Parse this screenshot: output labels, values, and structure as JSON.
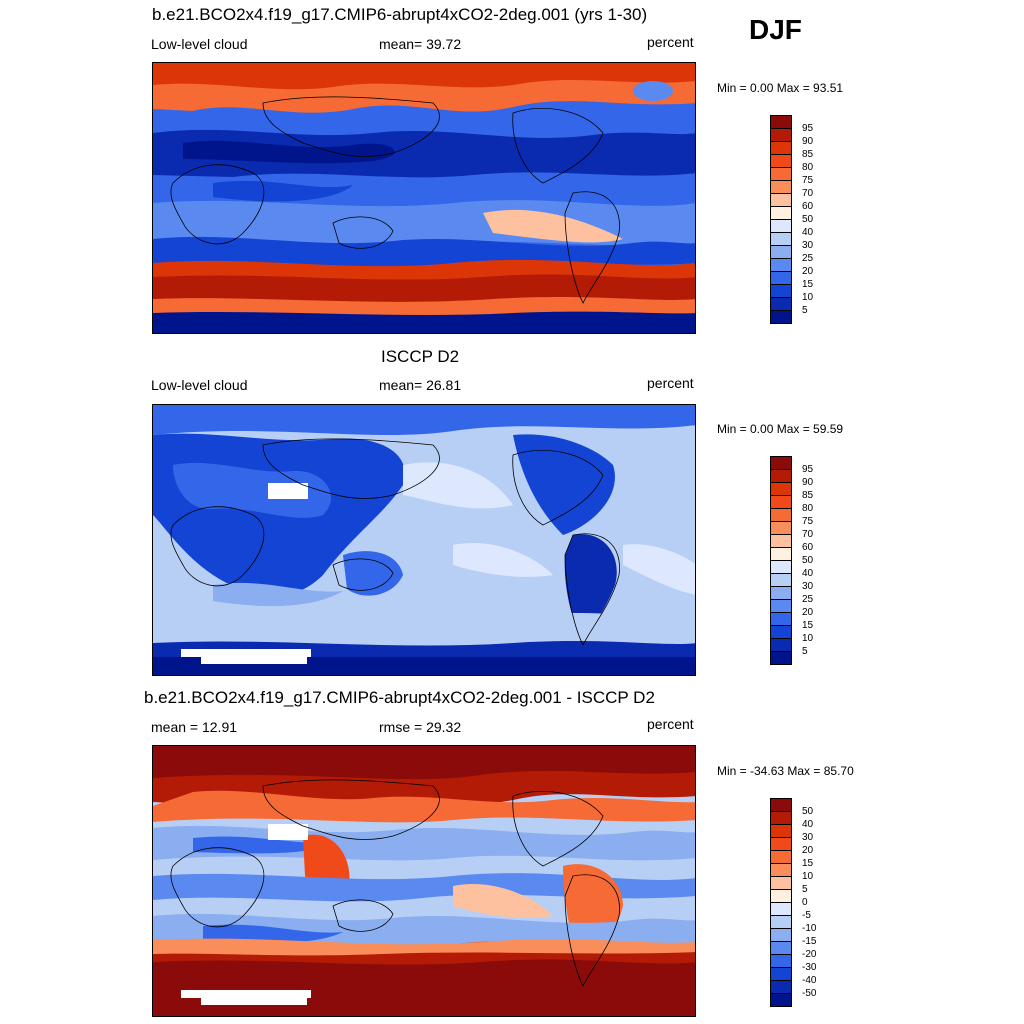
{
  "season": "DJF",
  "panels": [
    {
      "title": "b.e21.BCO2x4.f19_g17.CMIP6-abrupt4xCO2-2deg.001 (yrs 1-30)",
      "left_label": "Low-level cloud",
      "center_label": "mean=  39.72",
      "right_label": "percent",
      "minmax": "Min =   0.00 Max =  93.51"
    },
    {
      "title": "ISCCP D2",
      "left_label": "Low-level cloud",
      "center_label": "mean=  26.81",
      "right_label": "percent",
      "minmax": "Min =   0.00 Max =  59.59"
    },
    {
      "title": "b.e21.BCO2x4.f19_g17.CMIP6-abrupt4xCO2-2deg.001 - ISCCP D2",
      "left_label": "mean =  12.91",
      "center_label": "rmse =  29.32",
      "right_label": "percent",
      "minmax": "Min = -34.63 Max =  85.70"
    }
  ],
  "colorbars": {
    "field": {
      "labels": [
        "95",
        "90",
        "85",
        "80",
        "75",
        "70",
        "60",
        "50",
        "40",
        "30",
        "25",
        "20",
        "15",
        "10",
        "5"
      ],
      "colors": [
        "#8b0a0a",
        "#b31b06",
        "#dc3508",
        "#f04a1a",
        "#f56a35",
        "#fa8e5a",
        "#fdc1a0",
        "#fff0e0",
        "#dde8ff",
        "#b8cff5",
        "#8aaef0",
        "#5a8af0",
        "#3366e8",
        "#1444d4",
        "#0a2ab0",
        "#00148c"
      ]
    },
    "diff": {
      "labels": [
        "50",
        "40",
        "30",
        "20",
        "15",
        "10",
        "5",
        "0",
        "-5",
        "-10",
        "-15",
        "-20",
        "-30",
        "-40",
        "-50"
      ],
      "colors": [
        "#8b0a0a",
        "#b31b06",
        "#dc3508",
        "#f04a1a",
        "#f56a35",
        "#fa8e5a",
        "#fdc1a0",
        "#fff0e0",
        "#dde8ff",
        "#b8cff5",
        "#8aaef0",
        "#5a8af0",
        "#3366e8",
        "#1444d4",
        "#0a2ab0",
        "#00148c"
      ]
    }
  }
}
